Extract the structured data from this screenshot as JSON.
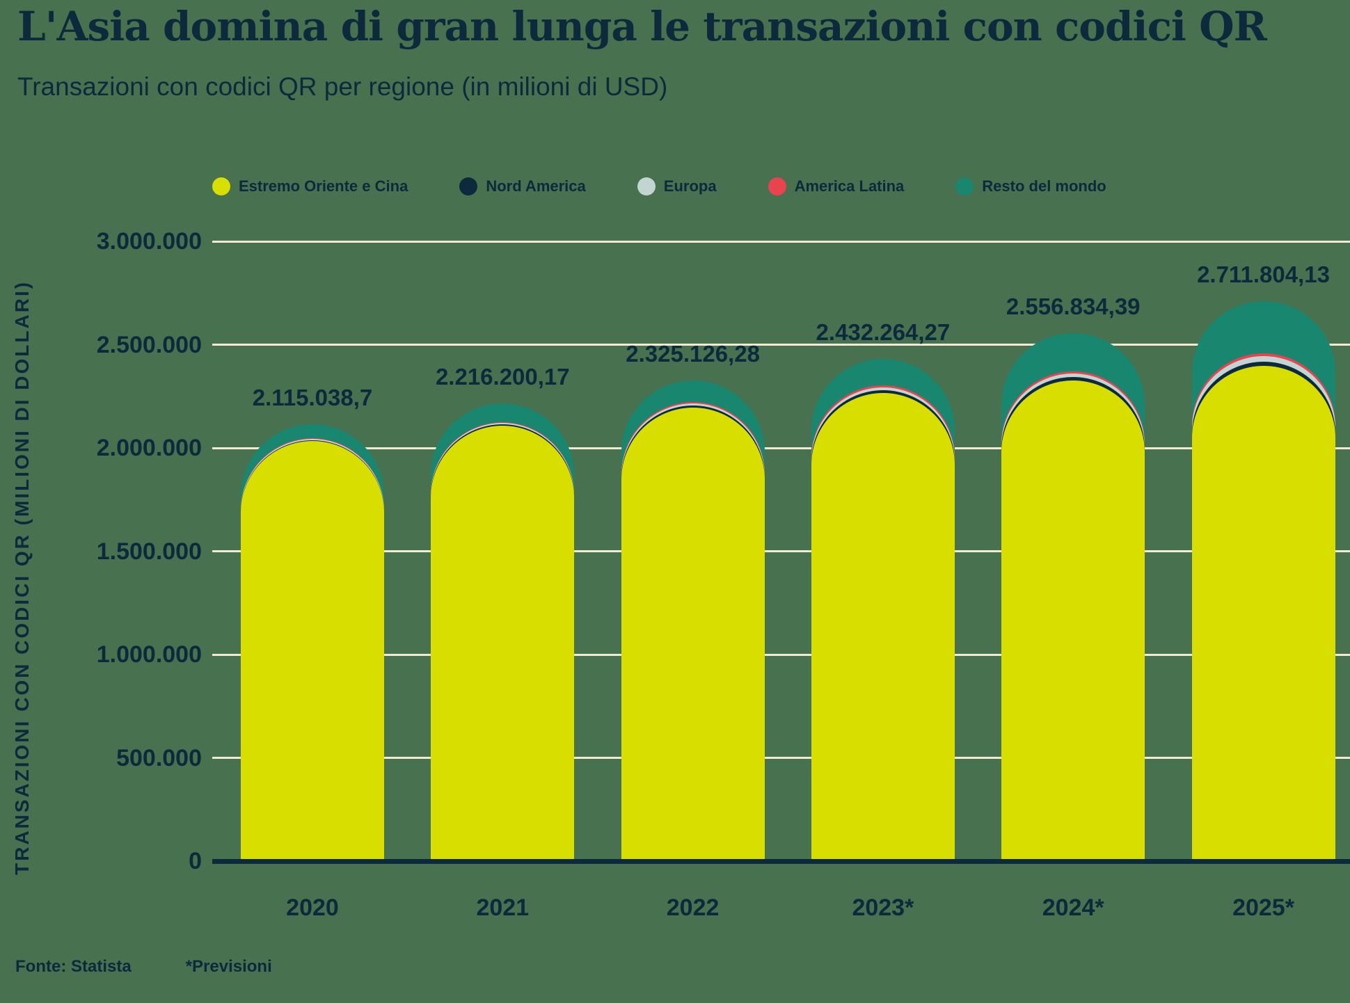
{
  "header": {
    "title": "L'Asia domina di gran lunga le transazioni con codici QR",
    "subtitle": "Transazioni con codici QR per regione (in milioni di USD)"
  },
  "footer": {
    "source": "Fonte: Statista",
    "note": "*Previsioni"
  },
  "colors": {
    "background": "#48724F",
    "text": "#0D2A3C",
    "gridline": "#F2EBD4",
    "axis": "#0D2A3C"
  },
  "chart_data": {
    "type": "bar",
    "stacked": true,
    "rounded_tops": true,
    "title": "L'Asia domina di gran lunga le transazioni con codici QR",
    "subtitle": "Transazioni con codici QR per regione (in milioni di USD)",
    "xlabel": "",
    "ylabel": "TRANSAZIONI CON CODICI QR (MILIONI DI DOLLARI)",
    "ylim": [
      0,
      3000000
    ],
    "grid": true,
    "legend_position": "top",
    "categories": [
      "2020",
      "2021",
      "2022",
      "2023*",
      "2024*",
      "2025*"
    ],
    "series": [
      {
        "name": "Estremo Oriente e Cina",
        "color": "#D8DF00",
        "values": [
          2033538.7,
          2107300.17,
          2196326.28,
          2267264.27,
          2325334.39,
          2395804.13
        ]
      },
      {
        "name": "Nord America",
        "color": "#0D2A3C",
        "values": [
          5000,
          7000,
          9500,
          12500,
          16500,
          21000
        ]
      },
      {
        "name": "Europa",
        "color": "#C2D5D3",
        "values": [
          5500,
          7700,
          10500,
          14500,
          19500,
          26000
        ]
      },
      {
        "name": "America Latina",
        "color": "#E8434F",
        "values": [
          3000,
          4200,
          5800,
          8000,
          10500,
          14000
        ]
      },
      {
        "name": "Resto del mondo",
        "color": "#19866F",
        "values": [
          68000,
          90000,
          103000,
          130000,
          185000,
          255000
        ]
      }
    ],
    "totals": [
      2115038.7,
      2216200.17,
      2325126.28,
      2432264.27,
      2556834.39,
      2711804.13
    ],
    "total_labels": [
      "2.115.038,7",
      "2.216.200,17",
      "2.325.126,28",
      "2.432.264,27",
      "2.556.834,39",
      "2.711.804,13"
    ],
    "yticks": [
      {
        "value": 0,
        "label": "0"
      },
      {
        "value": 500000,
        "label": "500.000"
      },
      {
        "value": 1000000,
        "label": "1.000.000"
      },
      {
        "value": 1500000,
        "label": "1.500.000"
      },
      {
        "value": 2000000,
        "label": "2.000.000"
      },
      {
        "value": 2500000,
        "label": "2.500.000"
      },
      {
        "value": 3000000,
        "label": "3.000.000"
      }
    ]
  }
}
